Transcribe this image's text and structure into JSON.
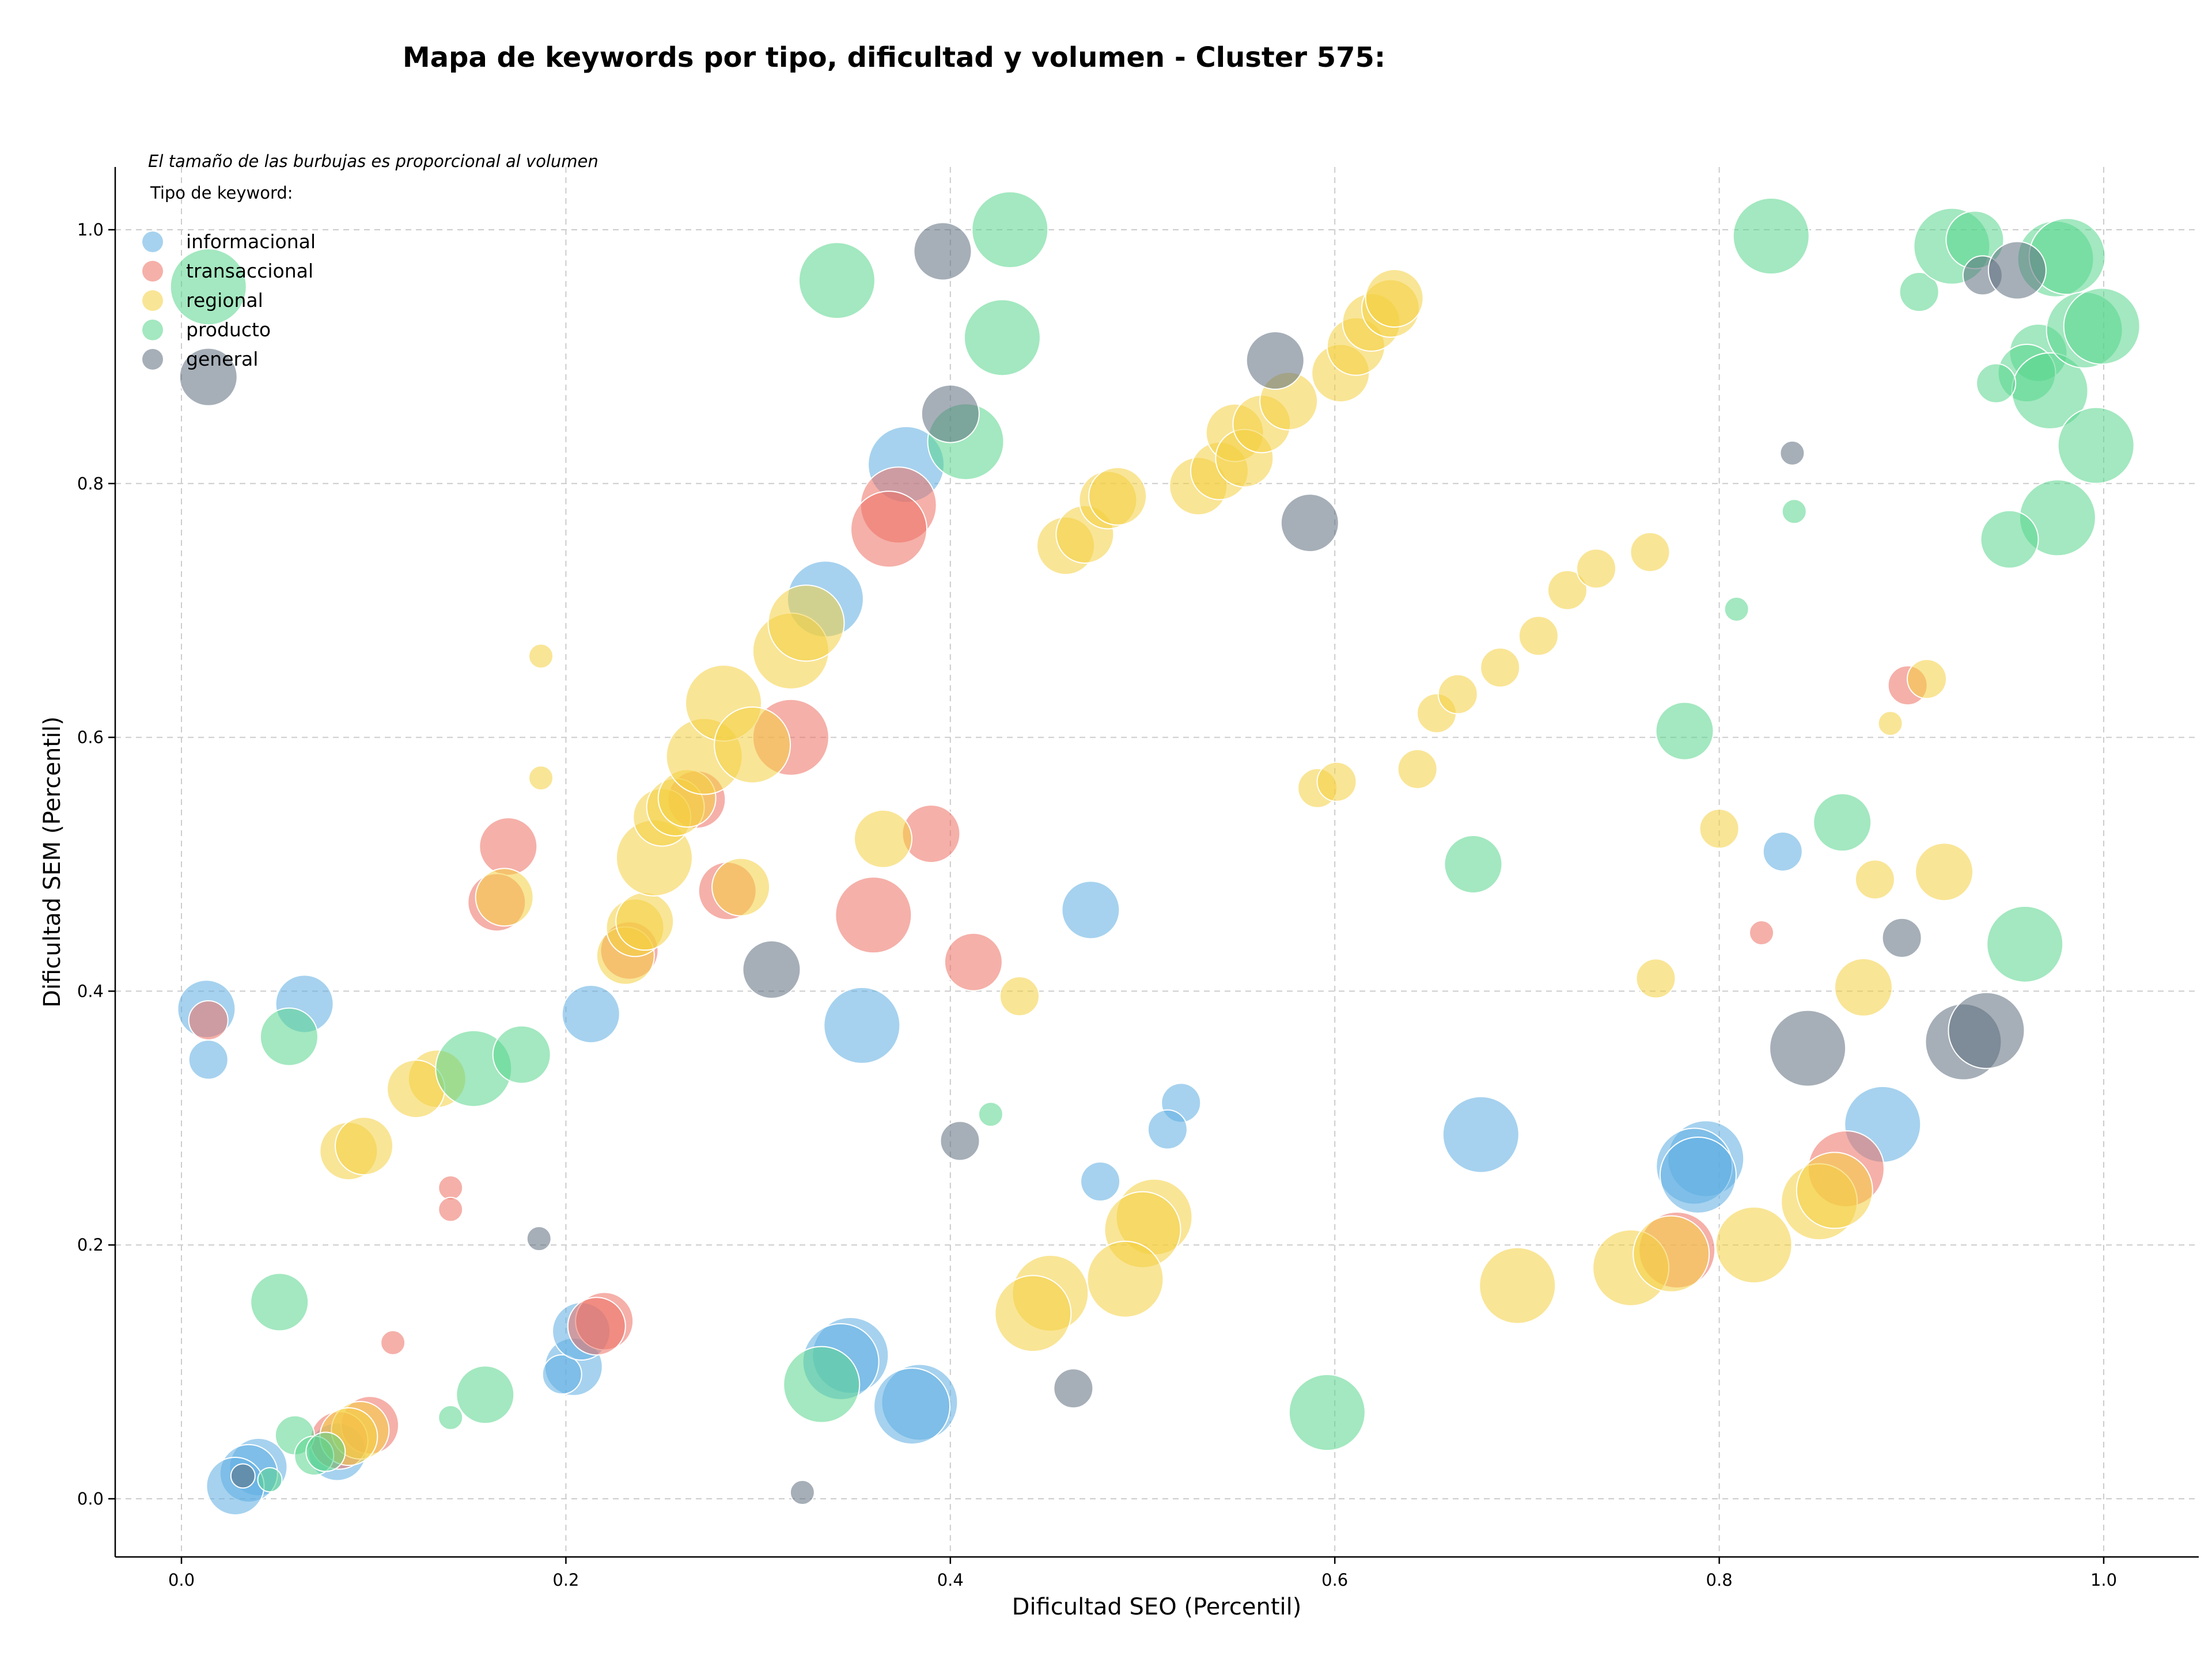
{
  "chart_data": {
    "type": "scatter",
    "title": "Mapa de keywords por tipo, dificultad y volumen - Cluster 575:",
    "xlabel": "Dificultad SEO (Percentil)",
    "ylabel": "Dificultad SEM (Percentil)",
    "xlim": [
      -0.035,
      1.05
    ],
    "ylim": [
      -0.045,
      1.05
    ],
    "xticks": [
      "0.0",
      "0.2",
      "0.4",
      "0.6",
      "0.8",
      "1.0"
    ],
    "yticks": [
      "0.0",
      "0.2",
      "0.4",
      "0.6",
      "0.8",
      "1.0"
    ],
    "grid": true,
    "legend_placement": "top-left",
    "legend_note": "El tamaño de las burbujas es proporcional al volumen",
    "legend_title": "Tipo de keyword:",
    "series": [
      {
        "name": "informacional",
        "color": "#5dade2",
        "points": [
          [
            0.013,
            0.386,
            3
          ],
          [
            0.064,
            0.39,
            3
          ],
          [
            0.014,
            0.346,
            2
          ],
          [
            0.213,
            0.382,
            3
          ],
          [
            0.377,
            0.815,
            4
          ],
          [
            0.335,
            0.709,
            4
          ],
          [
            0.354,
            0.373,
            4
          ],
          [
            0.473,
            0.464,
            3
          ],
          [
            0.52,
            0.312,
            2
          ],
          [
            0.513,
            0.291,
            2
          ],
          [
            0.478,
            0.25,
            2
          ],
          [
            0.676,
            0.287,
            4
          ],
          [
            0.833,
            0.51,
            2
          ],
          [
            0.885,
            0.295,
            4
          ],
          [
            0.793,
            0.268,
            4
          ],
          [
            0.787,
            0.262,
            4
          ],
          [
            0.789,
            0.255,
            4
          ],
          [
            0.348,
            0.113,
            4
          ],
          [
            0.343,
            0.108,
            4
          ],
          [
            0.384,
            0.076,
            4
          ],
          [
            0.38,
            0.073,
            4
          ],
          [
            0.204,
            0.104,
            3
          ],
          [
            0.198,
            0.098,
            2
          ],
          [
            0.208,
            0.132,
            3
          ],
          [
            0.04,
            0.025,
            3
          ],
          [
            0.035,
            0.02,
            3
          ],
          [
            0.028,
            0.01,
            3
          ],
          [
            0.081,
            0.037,
            3
          ]
        ]
      },
      {
        "name": "transaccional",
        "color": "#ec7063",
        "points": [
          [
            0.014,
            0.377,
            2
          ],
          [
            0.17,
            0.514,
            3
          ],
          [
            0.164,
            0.47,
            3
          ],
          [
            0.373,
            0.783,
            4
          ],
          [
            0.368,
            0.764,
            4
          ],
          [
            0.317,
            0.6,
            4
          ],
          [
            0.39,
            0.524,
            3
          ],
          [
            0.36,
            0.46,
            4
          ],
          [
            0.284,
            0.479,
            3
          ],
          [
            0.412,
            0.423,
            3
          ],
          [
            0.14,
            0.245,
            1
          ],
          [
            0.14,
            0.228,
            1
          ],
          [
            0.11,
            0.123,
            1
          ],
          [
            0.22,
            0.14,
            3
          ],
          [
            0.216,
            0.136,
            3
          ],
          [
            0.098,
            0.058,
            3
          ],
          [
            0.082,
            0.046,
            3
          ],
          [
            0.233,
            0.432,
            3
          ],
          [
            0.268,
            0.551,
            3
          ],
          [
            0.898,
            0.641,
            2
          ],
          [
            0.822,
            0.446,
            1
          ],
          [
            0.866,
            0.26,
            4
          ],
          [
            0.778,
            0.196,
            4
          ]
        ]
      },
      {
        "name": "regional",
        "color": "#f4d03f",
        "points": [
          [
            0.187,
            0.664,
            1
          ],
          [
            0.187,
            0.568,
            1
          ],
          [
            0.168,
            0.474,
            3
          ],
          [
            0.087,
            0.274,
            3
          ],
          [
            0.095,
            0.278,
            3
          ],
          [
            0.133,
            0.331,
            3
          ],
          [
            0.122,
            0.323,
            3
          ],
          [
            0.231,
            0.428,
            3
          ],
          [
            0.236,
            0.45,
            3
          ],
          [
            0.241,
            0.455,
            3
          ],
          [
            0.246,
            0.505,
            4
          ],
          [
            0.25,
            0.537,
            3
          ],
          [
            0.257,
            0.545,
            3
          ],
          [
            0.263,
            0.552,
            3
          ],
          [
            0.272,
            0.585,
            4
          ],
          [
            0.282,
            0.627,
            4
          ],
          [
            0.297,
            0.594,
            4
          ],
          [
            0.317,
            0.668,
            4
          ],
          [
            0.325,
            0.69,
            4
          ],
          [
            0.291,
            0.482,
            3
          ],
          [
            0.365,
            0.52,
            3
          ],
          [
            0.436,
            0.396,
            2
          ],
          [
            0.46,
            0.751,
            3
          ],
          [
            0.47,
            0.76,
            3
          ],
          [
            0.482,
            0.787,
            3
          ],
          [
            0.487,
            0.79,
            3
          ],
          [
            0.529,
            0.798,
            3
          ],
          [
            0.54,
            0.81,
            3
          ],
          [
            0.548,
            0.84,
            3
          ],
          [
            0.553,
            0.82,
            3
          ],
          [
            0.562,
            0.847,
            3
          ],
          [
            0.576,
            0.865,
            3
          ],
          [
            0.603,
            0.887,
            3
          ],
          [
            0.611,
            0.908,
            3
          ],
          [
            0.619,
            0.927,
            3
          ],
          [
            0.629,
            0.938,
            3
          ],
          [
            0.631,
            0.946,
            3
          ],
          [
            0.653,
            0.619,
            2
          ],
          [
            0.664,
            0.634,
            2
          ],
          [
            0.686,
            0.655,
            2
          ],
          [
            0.706,
            0.68,
            2
          ],
          [
            0.721,
            0.716,
            2
          ],
          [
            0.736,
            0.733,
            2
          ],
          [
            0.764,
            0.746,
            2
          ],
          [
            0.591,
            0.56,
            2
          ],
          [
            0.601,
            0.565,
            2
          ],
          [
            0.643,
            0.575,
            2
          ],
          [
            0.767,
            0.41,
            2
          ],
          [
            0.8,
            0.528,
            2
          ],
          [
            0.908,
            0.646,
            2
          ],
          [
            0.889,
            0.611,
            1
          ],
          [
            0.881,
            0.488,
            2
          ],
          [
            0.917,
            0.494,
            3
          ],
          [
            0.875,
            0.403,
            3
          ],
          [
            0.506,
            0.222,
            4
          ],
          [
            0.5,
            0.212,
            4
          ],
          [
            0.491,
            0.173,
            4
          ],
          [
            0.452,
            0.162,
            4
          ],
          [
            0.443,
            0.146,
            4
          ],
          [
            0.695,
            0.168,
            4
          ],
          [
            0.754,
            0.182,
            4
          ],
          [
            0.775,
            0.193,
            4
          ],
          [
            0.818,
            0.2,
            4
          ],
          [
            0.852,
            0.234,
            4
          ],
          [
            0.86,
            0.243,
            4
          ],
          [
            0.093,
            0.054,
            3
          ],
          [
            0.087,
            0.049,
            3
          ]
        ]
      },
      {
        "name": "producto",
        "color": "#58d68d",
        "points": [
          [
            0.014,
            0.955,
            4
          ],
          [
            0.341,
            0.96,
            4
          ],
          [
            0.431,
            1.0,
            4
          ],
          [
            0.427,
            0.915,
            4
          ],
          [
            0.408,
            0.833,
            4
          ],
          [
            0.056,
            0.364,
            3
          ],
          [
            0.152,
            0.339,
            4
          ],
          [
            0.177,
            0.35,
            3
          ],
          [
            0.421,
            0.303,
            1
          ],
          [
            0.672,
            0.5,
            3
          ],
          [
            0.782,
            0.605,
            3
          ],
          [
            0.809,
            0.701,
            1
          ],
          [
            0.839,
            0.778,
            1
          ],
          [
            0.827,
            0.995,
            4
          ],
          [
            0.904,
            0.951,
            2
          ],
          [
            0.921,
            0.987,
            4
          ],
          [
            0.933,
            0.992,
            3
          ],
          [
            0.975,
            0.977,
            4
          ],
          [
            0.981,
            0.979,
            4
          ],
          [
            0.966,
            0.903,
            3
          ],
          [
            0.96,
            0.887,
            3
          ],
          [
            0.972,
            0.873,
            4
          ],
          [
            0.99,
            0.921,
            4
          ],
          [
            0.999,
            0.924,
            4
          ],
          [
            0.996,
            0.83,
            4
          ],
          [
            0.976,
            0.773,
            4
          ],
          [
            0.944,
            0.879,
            2
          ],
          [
            0.951,
            0.756,
            3
          ],
          [
            0.959,
            0.437,
            4
          ],
          [
            0.864,
            0.533,
            3
          ],
          [
            0.596,
            0.068,
            4
          ],
          [
            0.333,
            0.09,
            4
          ],
          [
            0.158,
            0.082,
            3
          ],
          [
            0.14,
            0.064,
            1
          ],
          [
            0.051,
            0.155,
            3
          ],
          [
            0.059,
            0.05,
            2
          ],
          [
            0.069,
            0.034,
            2
          ],
          [
            0.075,
            0.037,
            2
          ],
          [
            0.046,
            0.015,
            1
          ]
        ]
      },
      {
        "name": "general",
        "color": "#5d6d7e",
        "points": [
          [
            0.014,
            0.884,
            3
          ],
          [
            0.396,
            0.983,
            3
          ],
          [
            0.4,
            0.855,
            3
          ],
          [
            0.569,
            0.897,
            3
          ],
          [
            0.587,
            0.769,
            3
          ],
          [
            0.307,
            0.417,
            3
          ],
          [
            0.405,
            0.282,
            2
          ],
          [
            0.186,
            0.205,
            1
          ],
          [
            0.464,
            0.087,
            2
          ],
          [
            0.323,
            0.005,
            1
          ],
          [
            0.032,
            0.018,
            1
          ],
          [
            0.838,
            0.824,
            1
          ],
          [
            0.937,
            0.964,
            2
          ],
          [
            0.955,
            0.968,
            3
          ],
          [
            0.846,
            0.355,
            4
          ],
          [
            0.927,
            0.36,
            4
          ],
          [
            0.939,
            0.369,
            4
          ],
          [
            0.895,
            0.442,
            2
          ]
        ]
      }
    ]
  }
}
